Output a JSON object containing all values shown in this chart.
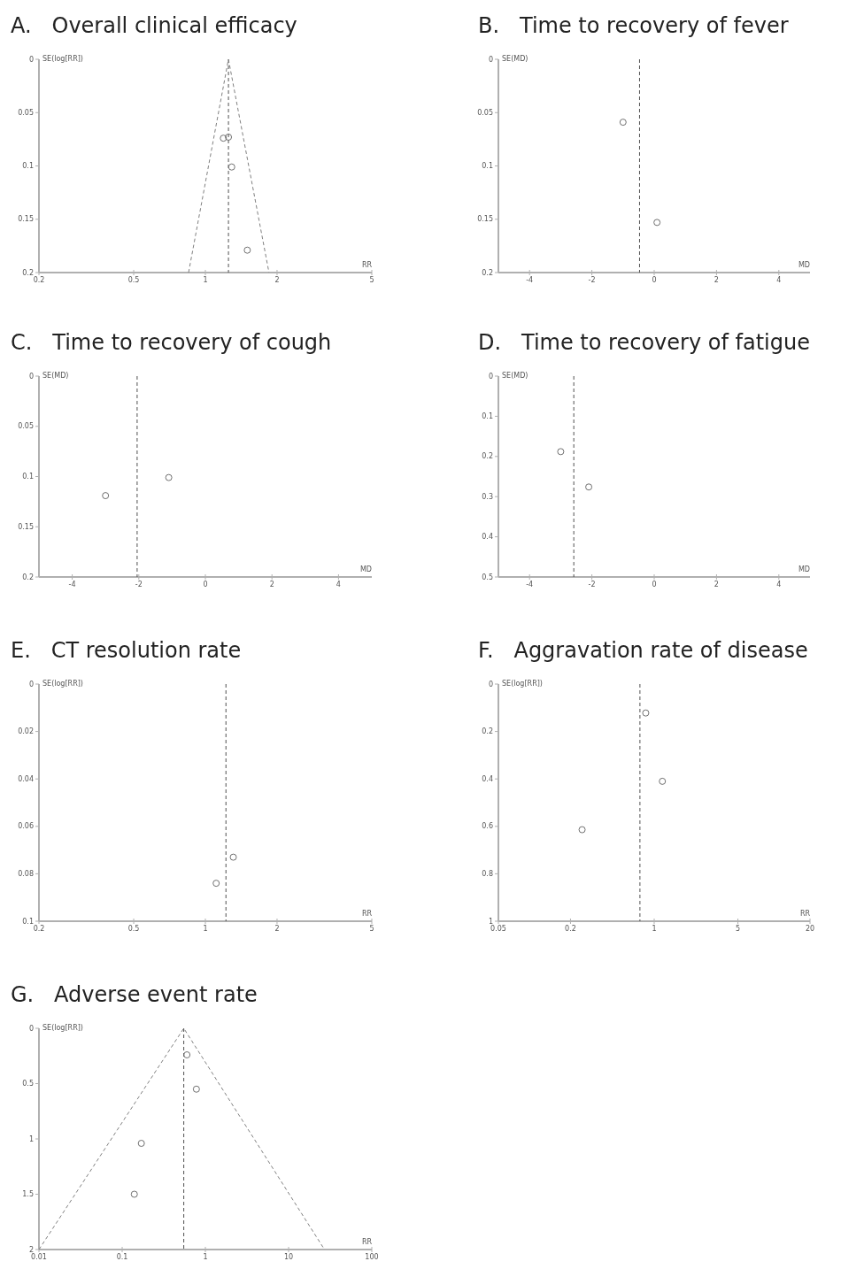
{
  "chart_data": [
    {
      "type": "scatter",
      "title": "A.   Overall clinical efficacy",
      "xlabel": "RR",
      "ylabel": "SE(log[RR])",
      "log": "x",
      "xlim": [
        0.2,
        5
      ],
      "xticks": [
        0.2,
        0.5,
        1,
        2,
        5
      ],
      "ylim": [
        0.2,
        0
      ],
      "yticks": [
        0,
        0.05,
        0.1,
        0.15,
        0.2
      ],
      "series": [
        {
          "color": "#707070",
          "marker": "circle",
          "x": [
            1.19,
            1.25,
            1.29,
            1.5
          ],
          "values": [
            0.074,
            0.073,
            0.101,
            0.179
          ]
        },
        {
          "type": "line",
          "color": "#808080",
          "line_style": "dashed",
          "x": [
            0.85,
            1.25,
            1.85
          ],
          "values": [
            0.2,
            0,
            0.2
          ]
        }
      ],
      "ref_lines": [
        {
          "axis": "x",
          "value": 1.25,
          "color": "#505050",
          "line_style": "dashed"
        }
      ]
    },
    {
      "type": "scatter",
      "title": "B.   Time to recovery of fever",
      "xlabel": "MD",
      "ylabel": "SE(MD)",
      "marker": "circle",
      "xlim": [
        -5,
        5
      ],
      "xticks": [
        -4,
        -2,
        0,
        2,
        4
      ],
      "ylim": [
        0.2,
        0
      ],
      "yticks": [
        0,
        0.05,
        0.1,
        0.15,
        0.2
      ],
      "series": [
        {
          "color": "#707070",
          "x": [
            -1.0,
            0.09
          ],
          "values": [
            0.059,
            0.153
          ]
        }
      ],
      "ref_lines": [
        {
          "axis": "x",
          "value": -0.47,
          "color": "#505050",
          "line_style": "dashed"
        }
      ]
    },
    {
      "type": "scatter",
      "title": "C.   Time to recovery of cough",
      "xlabel": "MD",
      "ylabel": "SE(MD)",
      "marker": "circle",
      "xlim": [
        -5,
        5
      ],
      "xticks": [
        -4,
        -2,
        0,
        2,
        4
      ],
      "ylim": [
        0.2,
        0
      ],
      "yticks": [
        0,
        0.05,
        0.1,
        0.15,
        0.2
      ],
      "series": [
        {
          "color": "#707070",
          "x": [
            -3.0,
            -1.1
          ],
          "values": [
            0.119,
            0.101
          ]
        }
      ],
      "ref_lines": [
        {
          "axis": "x",
          "value": -2.05,
          "color": "#505050",
          "line_style": "dashed"
        }
      ]
    },
    {
      "type": "scatter",
      "title": "D.   Time to recovery of fatigue",
      "xlabel": "MD",
      "ylabel": "SE(MD)",
      "marker": "circle",
      "xlim": [
        -5,
        5
      ],
      "xticks": [
        -4,
        -2,
        0,
        2,
        4
      ],
      "ylim": [
        0.5,
        0
      ],
      "yticks": [
        0,
        0.1,
        0.2,
        0.3,
        0.4,
        0.5
      ],
      "series": [
        {
          "color": "#707070",
          "x": [
            -3.0,
            -2.1
          ],
          "values": [
            0.188,
            0.276
          ]
        }
      ],
      "ref_lines": [
        {
          "axis": "x",
          "value": -2.58,
          "color": "#505050",
          "line_style": "dashed"
        }
      ]
    },
    {
      "type": "scatter",
      "title": "E.   CT resolution rate",
      "xlabel": "RR",
      "ylabel": "SE(log[RR])",
      "log": "x",
      "marker": "circle",
      "xlim": [
        0.2,
        5
      ],
      "xticks": [
        0.2,
        0.5,
        1,
        2,
        5
      ],
      "ylim": [
        0.1,
        0
      ],
      "yticks": [
        0,
        0.02,
        0.04,
        0.06,
        0.08,
        0.1
      ],
      "series": [
        {
          "color": "#707070",
          "x": [
            1.11,
            1.31
          ],
          "values": [
            0.084,
            0.073
          ]
        }
      ],
      "ref_lines": [
        {
          "axis": "x",
          "value": 1.22,
          "color": "#505050",
          "line_style": "dashed"
        }
      ]
    },
    {
      "type": "scatter",
      "title": "F.   Aggravation rate of disease",
      "xlabel": "RR",
      "ylabel": "SE(log[RR])",
      "log": "x",
      "marker": "circle",
      "xlim": [
        0.05,
        20
      ],
      "xticks": [
        0.05,
        0.2,
        1,
        5,
        20
      ],
      "ylim": [
        1,
        0
      ],
      "yticks": [
        0,
        0.2,
        0.4,
        0.6,
        0.8,
        1
      ],
      "series": [
        {
          "color": "#707070",
          "x": [
            0.85,
            1.17,
            0.25
          ],
          "values": [
            0.122,
            0.41,
            0.614
          ]
        }
      ],
      "ref_lines": [
        {
          "axis": "x",
          "value": 0.76,
          "color": "#505050",
          "line_style": "dashed"
        }
      ]
    },
    {
      "type": "scatter",
      "title": "G.   Adverse event rate",
      "xlabel": "RR",
      "ylabel": "SE(log[RR])",
      "log": "x",
      "xlim": [
        0.01,
        100
      ],
      "xticks": [
        0.01,
        0.1,
        1,
        10,
        100
      ],
      "ylim": [
        2,
        0
      ],
      "yticks": [
        0,
        0.5,
        1,
        1.5,
        2
      ],
      "series": [
        {
          "color": "#707070",
          "marker": "circle",
          "x": [
            0.6,
            0.78,
            0.17,
            0.14
          ],
          "values": [
            0.24,
            0.55,
            1.04,
            1.5
          ]
        },
        {
          "type": "line",
          "color": "#808080",
          "line_style": "dashed",
          "x": [
            0.01,
            0.55,
            27
          ],
          "values": [
            2,
            0,
            2
          ]
        }
      ],
      "ref_lines": [
        {
          "axis": "x",
          "value": 0.55,
          "color": "#505050",
          "line_style": "dashed"
        }
      ]
    }
  ]
}
